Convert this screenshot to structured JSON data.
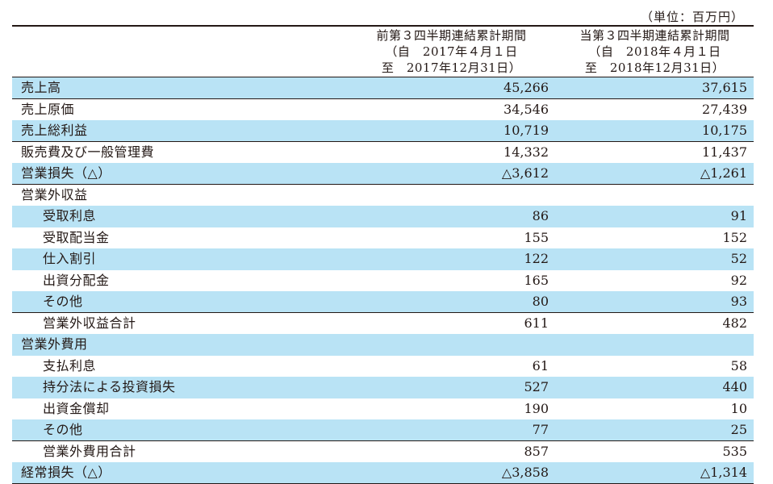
{
  "unit_note": "（単位：百万円）",
  "header": {
    "prev": {
      "line1": "前第３四半期連結累計期間",
      "line2": "（自　2017年４月１日",
      "line3": "至　2017年12月31日）"
    },
    "curr": {
      "line1": "当第３四半期連結累計期間",
      "line2": "（自　2018年４月１日",
      "line3": "至　2018年12月31日）"
    }
  },
  "rows": [
    {
      "label": "売上高",
      "prev": "45,266",
      "curr": "37,615"
    },
    {
      "label": "売上原価",
      "prev": "34,546",
      "curr": "27,439"
    },
    {
      "label": "売上総利益",
      "prev": "10,719",
      "curr": "10,175"
    },
    {
      "label": "販売費及び一般管理費",
      "prev": "14,332",
      "curr": "11,437"
    },
    {
      "label": "営業損失（△）",
      "prev": "△3,612",
      "curr": "△1,261"
    },
    {
      "label": "営業外収益",
      "prev": "",
      "curr": ""
    },
    {
      "label": "受取利息",
      "prev": "86",
      "curr": "91"
    },
    {
      "label": "受取配当金",
      "prev": "155",
      "curr": "152"
    },
    {
      "label": "仕入割引",
      "prev": "122",
      "curr": "52"
    },
    {
      "label": "出資分配金",
      "prev": "165",
      "curr": "92"
    },
    {
      "label": "その他",
      "prev": "80",
      "curr": "93"
    },
    {
      "label": "営業外収益合計",
      "prev": "611",
      "curr": "482"
    },
    {
      "label": "営業外費用",
      "prev": "",
      "curr": ""
    },
    {
      "label": "支払利息",
      "prev": "61",
      "curr": "58"
    },
    {
      "label": "持分法による投資損失",
      "prev": "527",
      "curr": "440"
    },
    {
      "label": "出資金償却",
      "prev": "190",
      "curr": "10"
    },
    {
      "label": "その他",
      "prev": "77",
      "curr": "25"
    },
    {
      "label": "営業外費用合計",
      "prev": "857",
      "curr": "535"
    },
    {
      "label": "経常損失（△）",
      "prev": "△3,858",
      "curr": "△1,314"
    }
  ]
}
